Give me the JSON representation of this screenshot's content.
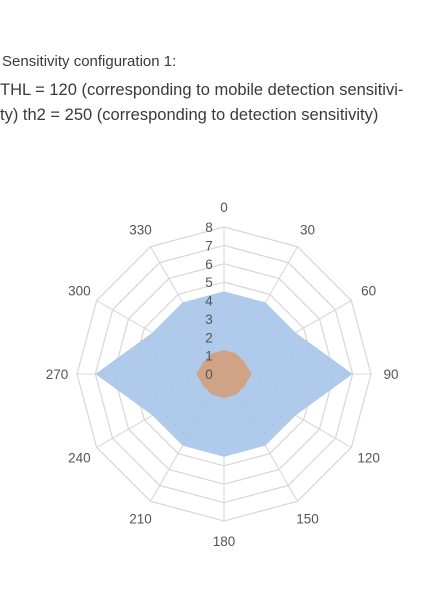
{
  "header": {
    "title": "Sensitivity configuration 1:",
    "line1": "THL = 120 (corresponding to mobile detection sensitivi-",
    "line2": "ty) th2 = 250 (corresponding to detection sensitivity)"
  },
  "chart_data": {
    "type": "radar",
    "categories": [
      "0",
      "30",
      "60",
      "90",
      "120",
      "150",
      "180",
      "210",
      "240",
      "270",
      "300",
      "330"
    ],
    "radial_ticks": [
      "0",
      "1",
      "2",
      "3",
      "4",
      "5",
      "6",
      "7",
      "8"
    ],
    "rlim": [
      0,
      8
    ],
    "grid": true,
    "series": [
      {
        "color": "#a8c6e8",
        "values": [
          4.5,
          4.5,
          4.5,
          7,
          4.5,
          4.5,
          4.5,
          4.5,
          4.5,
          7,
          4.5,
          4.5
        ]
      },
      {
        "color": "#d2a07e",
        "values": [
          1.3,
          1.3,
          1.3,
          1.5,
          1.3,
          1.3,
          1.3,
          1.3,
          1.3,
          1.5,
          1.3,
          1.3
        ]
      }
    ]
  }
}
